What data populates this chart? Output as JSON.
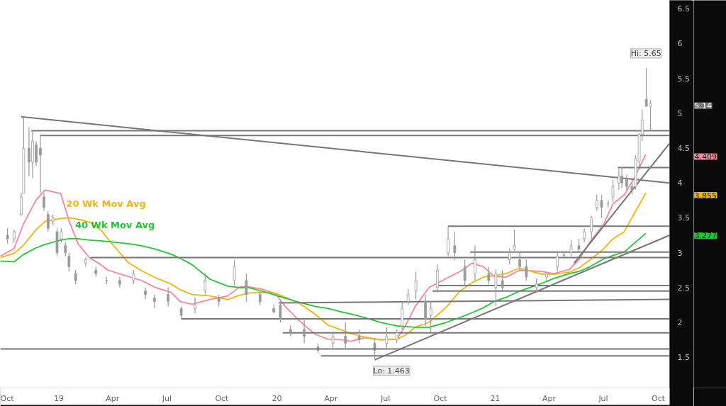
{
  "chart_data": {
    "type": "candlestick",
    "color": "#9a9a9a",
    "x": [
      "2018-10-07",
      "2018-10-18",
      "2018-10-30",
      "2018-11-03",
      "2018-11-12",
      "2018-11-18",
      "2018-11-24",
      "2018-12-01",
      "2018-12-07",
      "2018-12-14",
      "2018-12-22",
      "2018-12-29",
      "2019-01-05",
      "2019-01-12",
      "2019-01-18",
      "2019-01-29",
      "2019-02-15",
      "2019-03-04",
      "2019-03-22",
      "2019-04-13",
      "2019-05-06",
      "2019-05-26",
      "2019-06-10",
      "2019-07-03",
      "2019-07-25",
      "2019-08-17",
      "2019-09-03",
      "2019-09-26",
      "2019-10-22",
      "2019-11-11",
      "2019-12-04",
      "2019-12-27",
      "2020-01-07",
      "2020-01-24",
      "2020-02-16",
      "2020-03-10",
      "2020-04-04",
      "2020-04-25",
      "2020-05-18",
      "2020-06-13",
      "2020-07-03",
      "2020-07-20",
      "2020-07-29",
      "2020-08-08",
      "2020-08-21",
      "2020-09-06",
      "2020-09-15",
      "2020-09-26",
      "2020-10-14",
      "2020-10-25",
      "2020-11-11",
      "2020-11-28",
      "2020-12-21",
      "2021-01-02",
      "2021-01-13",
      "2021-01-25",
      "2021-02-02",
      "2021-02-11",
      "2021-02-22",
      "2021-03-11",
      "2021-03-28",
      "2021-04-15",
      "2021-04-26",
      "2021-05-08",
      "2021-05-21",
      "2021-05-30",
      "2021-06-11",
      "2021-06-20",
      "2021-06-28",
      "2021-07-09",
      "2021-07-17",
      "2021-07-27",
      "2021-08-01",
      "2021-08-09",
      "2021-08-18",
      "2021-08-24",
      "2021-08-30",
      "2021-09-04",
      "2021-09-11",
      "2021-09-18"
    ],
    "ohlc": [
      [
        3.25,
        3.35,
        3.13,
        3.2
      ],
      [
        3.2,
        3.33,
        3.15,
        3.3
      ],
      [
        3.55,
        3.86,
        3.53,
        3.8
      ],
      [
        3.85,
        4.95,
        3.85,
        4.5
      ],
      [
        4.5,
        4.8,
        4.1,
        4.3
      ],
      [
        4.3,
        4.75,
        4.07,
        4.6
      ],
      [
        4.55,
        4.6,
        4.25,
        4.3
      ],
      [
        4.5,
        4.7,
        3.85,
        4.4
      ],
      [
        3.8,
        3.85,
        3.6,
        3.65
      ],
      [
        3.55,
        3.6,
        3.3,
        3.35
      ],
      [
        3.45,
        3.55,
        3.4,
        3.5
      ],
      [
        3.3,
        3.35,
        2.95,
        3.0
      ],
      [
        3.2,
        3.35,
        3.15,
        3.3
      ],
      [
        3.1,
        3.15,
        2.95,
        3.0
      ],
      [
        2.95,
        3.0,
        2.73,
        2.8
      ],
      [
        2.7,
        2.75,
        2.55,
        2.6
      ],
      [
        2.85,
        2.93,
        2.8,
        2.9
      ],
      [
        2.75,
        2.8,
        2.65,
        2.7
      ],
      [
        2.6,
        2.65,
        2.55,
        2.6
      ],
      [
        2.6,
        2.65,
        2.5,
        2.55
      ],
      [
        2.6,
        2.75,
        2.55,
        2.7
      ],
      [
        2.45,
        2.5,
        2.33,
        2.4
      ],
      [
        2.35,
        2.4,
        2.2,
        2.3
      ],
      [
        2.4,
        2.5,
        2.23,
        2.3
      ],
      [
        2.2,
        2.23,
        2.06,
        2.1
      ],
      [
        2.2,
        2.36,
        2.13,
        2.25
      ],
      [
        2.45,
        2.7,
        2.4,
        2.6
      ],
      [
        2.35,
        2.4,
        2.23,
        2.3
      ],
      [
        2.6,
        2.9,
        2.53,
        2.8
      ],
      [
        2.6,
        2.7,
        2.3,
        2.4
      ],
      [
        2.4,
        2.45,
        2.25,
        2.3
      ],
      [
        2.2,
        2.26,
        2.13,
        2.15
      ],
      [
        2.25,
        2.3,
        2.0,
        2.05
      ],
      [
        1.9,
        1.96,
        1.8,
        1.85
      ],
      [
        1.9,
        2.03,
        1.7,
        1.8
      ],
      [
        1.65,
        1.7,
        1.56,
        1.6
      ],
      [
        1.7,
        1.85,
        1.63,
        1.8
      ],
      [
        1.8,
        2.0,
        1.63,
        1.7
      ],
      [
        1.8,
        1.9,
        1.7,
        1.75
      ],
      [
        1.7,
        1.76,
        1.463,
        1.6
      ],
      [
        1.7,
        1.93,
        1.63,
        1.8
      ],
      [
        1.75,
        1.9,
        1.7,
        1.85
      ],
      [
        1.95,
        2.3,
        1.9,
        2.2
      ],
      [
        2.3,
        2.48,
        2.25,
        2.4
      ],
      [
        2.45,
        2.73,
        2.33,
        2.6
      ],
      [
        2.3,
        2.4,
        1.95,
        2.05
      ],
      [
        2.1,
        2.3,
        1.83,
        2.2
      ],
      [
        2.5,
        2.83,
        2.43,
        2.75
      ],
      [
        3.0,
        3.38,
        2.95,
        3.2
      ],
      [
        3.1,
        3.3,
        2.9,
        3.0
      ],
      [
        2.8,
        2.9,
        2.53,
        2.6
      ],
      [
        2.7,
        3.1,
        2.6,
        2.9
      ],
      [
        2.7,
        2.8,
        2.55,
        2.6
      ],
      [
        2.5,
        2.76,
        2.23,
        2.7
      ],
      [
        2.6,
        2.75,
        2.46,
        2.5
      ],
      [
        2.9,
        3.06,
        2.83,
        3.0
      ],
      [
        3.05,
        3.33,
        3.03,
        3.1
      ],
      [
        2.9,
        3.0,
        2.73,
        2.8
      ],
      [
        2.8,
        2.9,
        2.6,
        2.65
      ],
      [
        2.5,
        2.63,
        2.43,
        2.55
      ],
      [
        2.65,
        2.73,
        2.6,
        2.7
      ],
      [
        2.8,
        3.0,
        2.73,
        2.95
      ],
      [
        2.96,
        3.0,
        2.93,
        2.98
      ],
      [
        3.0,
        3.18,
        2.95,
        3.1
      ],
      [
        3.1,
        3.2,
        3.0,
        3.05
      ],
      [
        3.2,
        3.35,
        3.15,
        3.3
      ],
      [
        3.3,
        3.53,
        3.2,
        3.5
      ],
      [
        3.65,
        3.83,
        3.6,
        3.75
      ],
      [
        3.75,
        3.83,
        3.5,
        3.65
      ],
      [
        3.7,
        3.75,
        3.65,
        3.7
      ],
      [
        3.8,
        4.05,
        3.73,
        3.95
      ],
      [
        4.0,
        4.2,
        3.9,
        4.1
      ],
      [
        4.1,
        4.22,
        3.93,
        4.0
      ],
      [
        4.05,
        4.12,
        3.9,
        3.95
      ],
      [
        3.95,
        4.0,
        3.83,
        3.9
      ],
      [
        3.95,
        4.4,
        3.9,
        4.35
      ],
      [
        4.3,
        4.72,
        4.23,
        4.7
      ],
      [
        4.7,
        5.05,
        4.6,
        4.9
      ],
      [
        5.2,
        5.65,
        5.1,
        5.1
      ],
      [
        5.1,
        5.19,
        4.75,
        5.14
      ]
    ],
    "series": [
      {
        "type": "line",
        "color": "#f7879a",
        "x": [
          "2018-09-25",
          "2018-10-18",
          "2018-11-02",
          "2018-11-24",
          "2018-12-09",
          "2019-01-04",
          "2019-01-18",
          "2019-02-02",
          "2019-02-21",
          "2019-03-12",
          "2019-03-24",
          "2019-04-27",
          "2019-05-20",
          "2019-06-12",
          "2019-07-08",
          "2019-07-23",
          "2019-08-12",
          "2019-09-11",
          "2019-10-11",
          "2019-10-31",
          "2019-11-15",
          "2019-12-07",
          "2019-12-30",
          "2020-01-15",
          "2020-02-07",
          "2020-03-05",
          "2020-03-27",
          "2020-04-19",
          "2020-05-04",
          "2020-05-27",
          "2020-06-23",
          "2020-07-20",
          "2020-08-04",
          "2020-08-20",
          "2020-09-12",
          "2020-10-11",
          "2020-11-03",
          "2020-11-23",
          "2020-12-12",
          "2020-12-30",
          "2021-01-19",
          "2021-02-11",
          "2021-03-20",
          "2021-04-09",
          "2021-05-05",
          "2021-05-21",
          "2021-06-09",
          "2021-07-01",
          "2021-07-17",
          "2021-08-05",
          "2021-08-21",
          "2021-09-10"
        ],
        "values": [
          2.95,
          3.06,
          3.4,
          3.76,
          3.9,
          3.85,
          3.46,
          3.13,
          2.93,
          2.83,
          2.75,
          2.66,
          2.6,
          2.5,
          2.43,
          2.3,
          2.26,
          2.33,
          2.38,
          2.51,
          2.51,
          2.48,
          2.41,
          2.23,
          2.03,
          1.83,
          1.76,
          1.75,
          1.73,
          1.78,
          1.75,
          1.76,
          1.96,
          2.23,
          2.5,
          2.63,
          2.73,
          2.85,
          2.8,
          2.66,
          2.65,
          2.75,
          2.73,
          2.7,
          2.76,
          2.9,
          3.16,
          3.4,
          3.7,
          3.83,
          4.06,
          4.409
        ]
      },
      {
        "type": "line",
        "name": "20 Wk Mov Avg",
        "color": "#efb60f",
        "x": [
          "2018-09-25",
          "2018-10-18",
          "2018-11-02",
          "2018-11-24",
          "2018-12-09",
          "2019-01-04",
          "2019-01-18",
          "2019-02-02",
          "2019-02-21",
          "2019-03-12",
          "2019-03-24",
          "2019-04-27",
          "2019-05-20",
          "2019-06-12",
          "2019-07-08",
          "2019-07-23",
          "2019-08-12",
          "2019-09-11",
          "2019-10-11",
          "2019-10-31",
          "2019-11-15",
          "2019-12-07",
          "2019-12-30",
          "2020-01-15",
          "2020-02-07",
          "2020-03-05",
          "2020-03-27",
          "2020-04-19",
          "2020-05-04",
          "2020-05-27",
          "2020-06-23",
          "2020-07-20",
          "2020-08-04",
          "2020-08-20",
          "2020-09-12",
          "2020-10-11",
          "2020-11-03",
          "2020-11-23",
          "2020-12-12",
          "2020-12-30",
          "2021-01-19",
          "2021-02-11",
          "2021-03-20",
          "2021-04-09",
          "2021-05-05",
          "2021-05-21",
          "2021-06-09",
          "2021-07-01",
          "2021-07-17",
          "2021-08-05",
          "2021-08-21",
          "2021-09-10"
        ],
        "values": [
          2.93,
          2.99,
          3.1,
          3.33,
          3.45,
          3.49,
          3.5,
          3.48,
          3.44,
          3.33,
          3.2,
          2.86,
          2.74,
          2.64,
          2.55,
          2.47,
          2.4,
          2.38,
          2.33,
          2.39,
          2.42,
          2.43,
          2.42,
          2.36,
          2.28,
          2.12,
          1.96,
          1.89,
          1.84,
          1.79,
          1.75,
          1.76,
          1.82,
          1.93,
          2.0,
          2.22,
          2.45,
          2.57,
          2.65,
          2.67,
          2.7,
          2.78,
          2.69,
          2.69,
          2.72,
          2.78,
          2.9,
          3.05,
          3.2,
          3.3,
          3.55,
          3.855
        ]
      },
      {
        "type": "line",
        "name": "40 Wk Mov Avg",
        "color": "#22c534",
        "x": [
          "2018-09-25",
          "2018-10-18",
          "2018-11-02",
          "2018-11-24",
          "2018-12-09",
          "2019-01-04",
          "2019-01-18",
          "2019-02-02",
          "2019-02-21",
          "2019-03-12",
          "2019-03-24",
          "2019-04-27",
          "2019-05-20",
          "2019-06-12",
          "2019-07-08",
          "2019-07-23",
          "2019-08-12",
          "2019-09-11",
          "2019-10-11",
          "2019-10-31",
          "2019-11-15",
          "2019-12-07",
          "2019-12-30",
          "2020-01-15",
          "2020-02-07",
          "2020-03-05",
          "2020-03-27",
          "2020-04-19",
          "2020-05-04",
          "2020-05-27",
          "2020-06-23",
          "2020-07-20",
          "2020-08-04",
          "2020-08-20",
          "2020-09-12",
          "2020-10-11",
          "2020-11-03",
          "2020-11-23",
          "2020-12-12",
          "2020-12-30",
          "2021-01-19",
          "2021-02-11",
          "2021-03-20",
          "2021-04-09",
          "2021-05-05",
          "2021-05-21",
          "2021-06-09",
          "2021-07-01",
          "2021-07-17",
          "2021-08-05",
          "2021-08-21",
          "2021-09-10"
        ],
        "values": [
          2.88,
          2.87,
          2.97,
          3.07,
          3.12,
          3.18,
          3.2,
          3.2,
          3.18,
          3.17,
          3.16,
          3.13,
          3.1,
          3.05,
          2.98,
          2.92,
          2.83,
          2.62,
          2.52,
          2.5,
          2.5,
          2.45,
          2.39,
          2.35,
          2.29,
          2.23,
          2.2,
          2.15,
          2.12,
          2.07,
          2.0,
          1.95,
          1.94,
          1.93,
          1.93,
          2.0,
          2.07,
          2.14,
          2.21,
          2.3,
          2.36,
          2.45,
          2.56,
          2.63,
          2.7,
          2.73,
          2.8,
          2.91,
          2.96,
          3.01,
          3.13,
          3.277
        ]
      },
      {
        "type": "line",
        "color": "#777777",
        "x": [
          "2018-10-30",
          "2021-10-20"
        ],
        "values": [
          4.95,
          4.0
        ]
      },
      {
        "type": "line",
        "color": "#777777",
        "x": [
          "2018-11-16",
          "2021-10-20"
        ],
        "values": [
          4.75,
          4.75
        ]
      },
      {
        "type": "line",
        "color": "#777777",
        "x": [
          "2018-12-01",
          "2021-10-20"
        ],
        "values": [
          4.68,
          4.68
        ]
      },
      {
        "type": "line",
        "color": "#777777",
        "x": [
          "2019-02-23",
          "2021-10-20"
        ],
        "values": [
          2.93,
          2.93
        ]
      },
      {
        "type": "line",
        "color": "#777777",
        "x": [
          "2019-07-25",
          "2021-10-20"
        ],
        "values": [
          2.05,
          2.05
        ]
      },
      {
        "type": "line",
        "color": "#777777",
        "x": [
          "2020-01-04",
          "2021-10-20"
        ],
        "values": [
          2.28,
          2.33
        ]
      },
      {
        "type": "line",
        "color": "#777777",
        "x": [
          "2020-01-11",
          "2021-10-20"
        ],
        "values": [
          1.85,
          1.85
        ]
      },
      {
        "type": "line",
        "color": "#777777",
        "x": [
          "2020-03-15",
          "2021-10-20"
        ],
        "values": [
          1.52,
          1.52
        ]
      },
      {
        "type": "line",
        "color": "#777777",
        "x": [
          "2020-06-13",
          "2021-10-20"
        ],
        "values": [
          1.463,
          3.25
        ]
      },
      {
        "type": "line",
        "color": "#777777",
        "x": [
          "2020-10-14",
          "2021-10-20"
        ],
        "values": [
          3.38,
          3.38
        ]
      },
      {
        "type": "line",
        "color": "#777777",
        "x": [
          "2020-11-20",
          "2021-10-20"
        ],
        "values": [
          3.01,
          3.01
        ]
      },
      {
        "type": "line",
        "color": "#777777",
        "x": [
          "2020-09-26",
          "2021-10-20"
        ],
        "values": [
          2.53,
          2.53
        ]
      },
      {
        "type": "line",
        "color": "#777777",
        "x": [
          "2020-09-18",
          "2021-10-20"
        ],
        "values": [
          2.45,
          2.45
        ]
      },
      {
        "type": "line",
        "color": "#777777",
        "x": [
          "2021-07-25",
          "2021-10-20"
        ],
        "values": [
          4.22,
          4.22
        ]
      },
      {
        "type": "line",
        "color": "#777777",
        "x": [
          "2021-05-13",
          "2021-10-20"
        ],
        "values": [
          2.85,
          4.57
        ]
      }
    ],
    "ref_lines": [
      {
        "axis": "y",
        "value": 1.62,
        "color": "#777777"
      }
    ],
    "annotations": [
      {
        "text": "Hi: 5.65",
        "x": "2021-09-11",
        "y": 5.65
      },
      {
        "text": "Lo: 1.463",
        "x": "2020-06-13",
        "y": 1.463
      },
      "5.14",
      "4.409",
      "3.855",
      "3.277"
    ],
    "xlim": [
      "2018-09-25",
      "2021-10-20"
    ],
    "xticks": [
      {
        "value": "2018-10-01",
        "label": "Oct"
      },
      {
        "value": "2019-01-01",
        "label": "19"
      },
      {
        "value": "2019-04-01",
        "label": "Apr"
      },
      {
        "value": "2019-07-01",
        "label": "Jul"
      },
      {
        "value": "2019-10-01",
        "label": "Oct"
      },
      {
        "value": "2020-01-01",
        "label": "20"
      },
      {
        "value": "2020-04-01",
        "label": "Apr"
      },
      {
        "value": "2020-07-01",
        "label": "Jul"
      },
      {
        "value": "2020-10-01",
        "label": "Oct"
      },
      {
        "value": "2021-01-01",
        "label": "21"
      },
      {
        "value": "2021-04-01",
        "label": "Apr"
      },
      {
        "value": "2021-07-01",
        "label": "Jul"
      },
      {
        "value": "2021-10-01",
        "label": "Oct"
      }
    ],
    "ylim": [
      1.06,
      6.62
    ],
    "yticks": [
      1.5,
      2,
      2.5,
      3,
      3.5,
      4,
      4.5,
      5,
      5.5,
      6,
      6.5
    ],
    "grid": false
  }
}
